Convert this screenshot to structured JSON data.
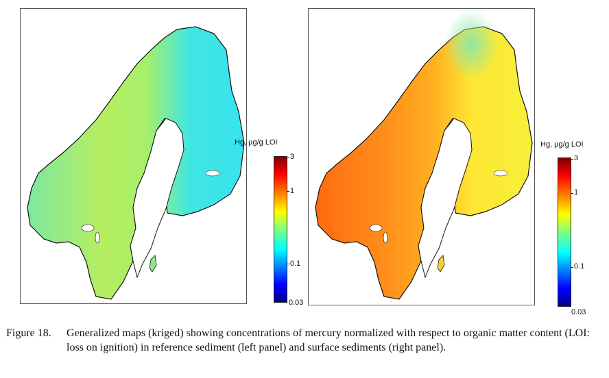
{
  "panels": [
    {
      "id": "left",
      "description_key": "reference sediment"
    },
    {
      "id": "right",
      "description_key": "surface sediments"
    }
  ],
  "colorbar": {
    "label": "Hg, µg/g LOI",
    "ticks": [
      "3",
      "1",
      "0.1",
      "0.03"
    ],
    "scale": "log",
    "range": [
      0.03,
      3
    ],
    "colormap": [
      "#00008f",
      "#0000ff",
      "#00ffff",
      "#ffff00",
      "#ff7f00",
      "#ff0000",
      "#7f0000"
    ]
  },
  "map_colors": {
    "left_land": "#b9f05e",
    "left_east": "#3fe7e6",
    "right_land": "#ff9a1c",
    "right_east": "#ffee33",
    "lakes": "#ffffff",
    "coast": "#111111"
  },
  "caption": {
    "label": "Figure 18.",
    "text": "Generalized maps (kriged) showing concentrations of mercury normalized with respect to organic matter content (LOI: loss on ignition) in reference sediment (left panel) and surface sediments (right panel)."
  }
}
